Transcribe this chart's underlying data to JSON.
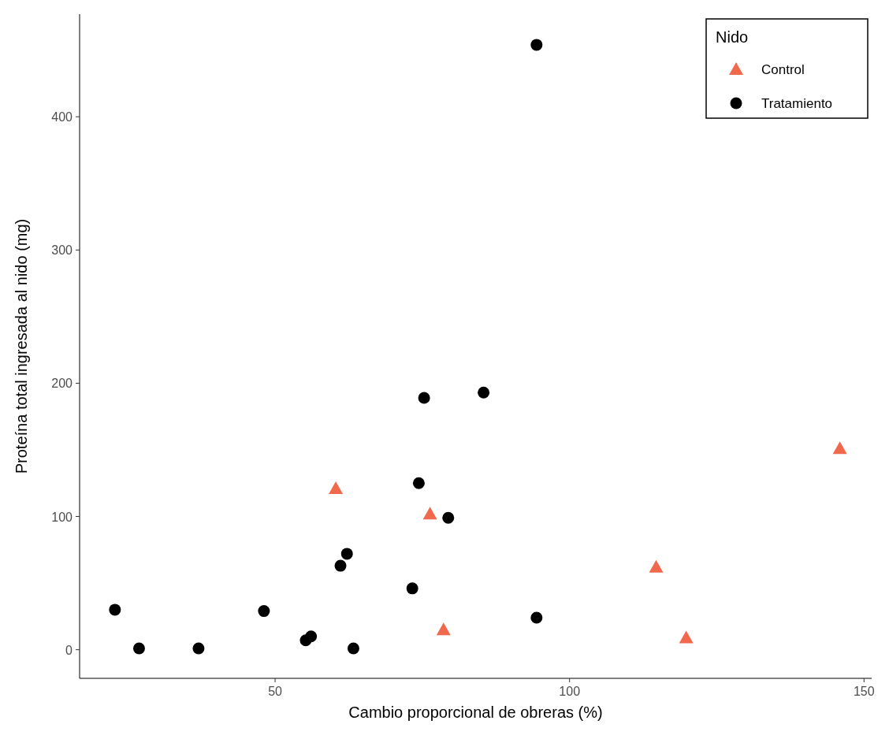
{
  "chart_data": {
    "type": "scatter",
    "xlabel": "Cambio proporcional de obreras (%)",
    "ylabel": "Proteína total ingresada al nido  (mg)",
    "legend_title": "Nido",
    "legend": "top right",
    "grid": false,
    "xlim": [
      16.8,
      151.3
    ],
    "xticks": [
      50,
      100,
      150
    ],
    "ylim": [
      -21.5,
      477
    ],
    "yticks": [
      0,
      100,
      200,
      300,
      400
    ],
    "series": [
      {
        "name": "Control",
        "color": "#f0694d",
        "marker": "triangle",
        "x": [
          60.3,
          76.3,
          78.6,
          114.7,
          119.8,
          145.9
        ],
        "values": [
          121,
          102,
          15,
          62,
          9,
          151
        ]
      },
      {
        "name": "Tratamiento",
        "color": "#000000",
        "marker": "circle",
        "x": [
          22.8,
          26.9,
          37.0,
          48.1,
          55.2,
          56.1,
          63.3,
          61.1,
          62.2,
          73.3,
          74.4,
          75.3,
          79.4,
          85.4,
          94.4,
          94.4
        ],
        "values": [
          30,
          1,
          1,
          29,
          7,
          10,
          1,
          63,
          72,
          46,
          125,
          189,
          99,
          193,
          24,
          454
        ]
      }
    ]
  }
}
